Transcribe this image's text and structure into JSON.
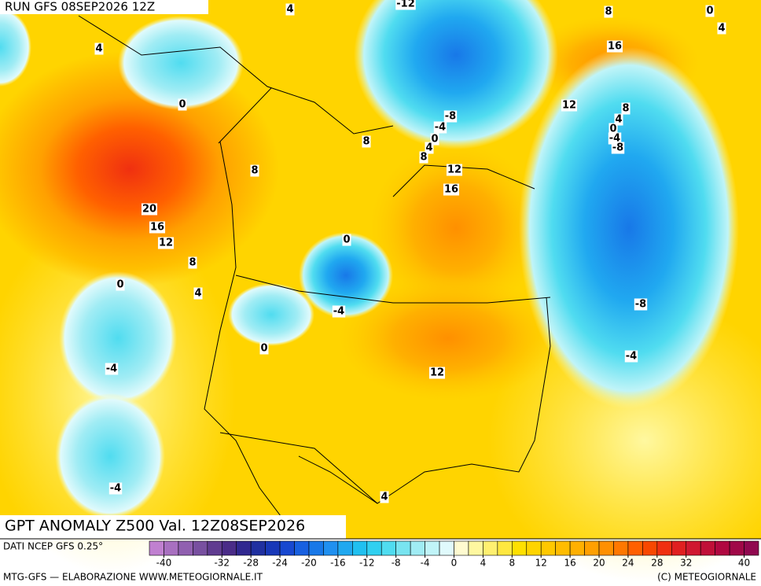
{
  "header": {
    "run": "RUN GFS 08SEP2026 12Z"
  },
  "map": {
    "title": "GPT ANOMALY Z500 Val. 12Z08SEP2026",
    "contour_labels": [
      4,
      -12,
      8,
      0,
      4,
      4,
      16,
      0,
      12,
      8,
      -8,
      4,
      -4,
      0,
      0,
      -4,
      -8,
      8,
      4,
      8,
      12,
      8,
      16,
      20,
      16,
      12,
      0,
      8,
      0,
      4,
      -8,
      -4,
      0,
      -4,
      -4,
      12,
      -4,
      4
    ]
  },
  "colorbar": {
    "source": "DATI NCEP GFS 0.25°",
    "lim": [
      -42,
      42
    ],
    "ticks": [
      -40,
      -32,
      -28,
      -24,
      -20,
      -16,
      -12,
      -8,
      -4,
      0,
      4,
      8,
      12,
      16,
      20,
      24,
      28,
      32,
      40
    ],
    "colors": [
      "#c080d0",
      "#a870c0",
      "#9060b0",
      "#7850a0",
      "#603c90",
      "#4a2c88",
      "#302890",
      "#2030a0",
      "#1838b8",
      "#1848d0",
      "#1860e0",
      "#1878e8",
      "#2090f0",
      "#20a8f0",
      "#20c0f0",
      "#30d0f0",
      "#50dcf0",
      "#78e4f0",
      "#a0ecf4",
      "#c0f4f8",
      "#e0fafc",
      "#fffbd0",
      "#fff8a0",
      "#fff070",
      "#ffe840",
      "#ffe000",
      "#ffd400",
      "#ffc800",
      "#ffbc00",
      "#ffb000",
      "#ffa000",
      "#ff9000",
      "#ff7800",
      "#ff6000",
      "#f84800",
      "#f03010",
      "#e02020",
      "#d01830",
      "#c01038",
      "#b00840",
      "#a00848",
      "#900850"
    ]
  },
  "footer": {
    "credit": "MTG-GFS — ELABORAZIONE WWW.METEOGIORNALE.IT",
    "copyright": "(C) METEOGIORNALE"
  }
}
